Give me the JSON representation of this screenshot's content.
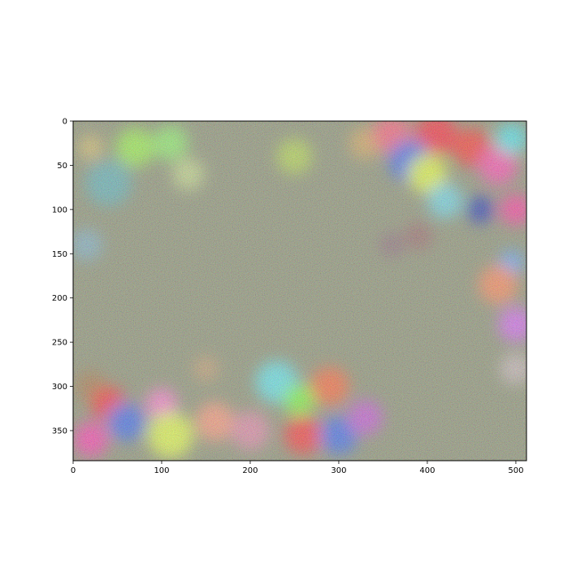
{
  "chart_data": {
    "type": "heatmap",
    "title": "",
    "xlabel": "",
    "ylabel": "",
    "xlim": [
      0,
      512
    ],
    "ylim": [
      384,
      0
    ],
    "grid": false,
    "xticks": [
      0,
      100,
      200,
      300,
      400,
      500
    ],
    "yticks": [
      0,
      50,
      100,
      150,
      200,
      250,
      300,
      350
    ],
    "xtick_labels": [
      "0",
      "100",
      "200",
      "300",
      "400",
      "500"
    ],
    "ytick_labels": [
      "0",
      "50",
      "100",
      "150",
      "200",
      "250",
      "300",
      "350"
    ],
    "base_color": "#8e9476",
    "blobs": [
      {
        "x": 40,
        "y": 70,
        "r": 26,
        "color": "#5fb3b8"
      },
      {
        "x": 70,
        "y": 30,
        "r": 22,
        "color": "#9bf54a"
      },
      {
        "x": 110,
        "y": 25,
        "r": 20,
        "color": "#8ff26a"
      },
      {
        "x": 130,
        "y": 60,
        "r": 18,
        "color": "#c4d98a"
      },
      {
        "x": 20,
        "y": 30,
        "r": 14,
        "color": "#d7c06a"
      },
      {
        "x": 15,
        "y": 140,
        "r": 18,
        "color": "#7fb0c4"
      },
      {
        "x": 250,
        "y": 40,
        "r": 20,
        "color": "#b5d84f"
      },
      {
        "x": 330,
        "y": 25,
        "r": 18,
        "color": "#d6a85d"
      },
      {
        "x": 360,
        "y": 15,
        "r": 22,
        "color": "#ff5f7a"
      },
      {
        "x": 410,
        "y": 15,
        "r": 24,
        "color": "#ff2d3a"
      },
      {
        "x": 380,
        "y": 45,
        "r": 24,
        "color": "#3f6df0"
      },
      {
        "x": 400,
        "y": 60,
        "r": 22,
        "color": "#e9ff3b"
      },
      {
        "x": 420,
        "y": 90,
        "r": 20,
        "color": "#6fd8e8"
      },
      {
        "x": 450,
        "y": 30,
        "r": 22,
        "color": "#ff3a30"
      },
      {
        "x": 480,
        "y": 50,
        "r": 22,
        "color": "#ff4fb0"
      },
      {
        "x": 495,
        "y": 20,
        "r": 18,
        "color": "#4fe8f0"
      },
      {
        "x": 460,
        "y": 100,
        "r": 16,
        "color": "#2a3cb8"
      },
      {
        "x": 500,
        "y": 100,
        "r": 18,
        "color": "#ff3fa0"
      },
      {
        "x": 495,
        "y": 160,
        "r": 14,
        "color": "#5fa8ff"
      },
      {
        "x": 480,
        "y": 185,
        "r": 22,
        "color": "#ff8a5a"
      },
      {
        "x": 500,
        "y": 230,
        "r": 20,
        "color": "#d86af5"
      },
      {
        "x": 500,
        "y": 280,
        "r": 18,
        "color": "#c8b8b8"
      },
      {
        "x": 20,
        "y": 300,
        "r": 18,
        "color": "#a87a4a"
      },
      {
        "x": 40,
        "y": 320,
        "r": 20,
        "color": "#ff3030"
      },
      {
        "x": 60,
        "y": 340,
        "r": 22,
        "color": "#3f6df0"
      },
      {
        "x": 20,
        "y": 360,
        "r": 20,
        "color": "#ff40b0"
      },
      {
        "x": 100,
        "y": 320,
        "r": 18,
        "color": "#ff80d0"
      },
      {
        "x": 110,
        "y": 355,
        "r": 26,
        "color": "#e6ff4a"
      },
      {
        "x": 160,
        "y": 340,
        "r": 22,
        "color": "#ff9a7a"
      },
      {
        "x": 200,
        "y": 350,
        "r": 22,
        "color": "#e38aa8"
      },
      {
        "x": 230,
        "y": 295,
        "r": 24,
        "color": "#5fe8f0"
      },
      {
        "x": 255,
        "y": 315,
        "r": 18,
        "color": "#7dff3a"
      },
      {
        "x": 290,
        "y": 300,
        "r": 22,
        "color": "#ff6a3a"
      },
      {
        "x": 260,
        "y": 355,
        "r": 22,
        "color": "#ff3a3a"
      },
      {
        "x": 300,
        "y": 355,
        "r": 22,
        "color": "#3f6df0"
      },
      {
        "x": 330,
        "y": 335,
        "r": 20,
        "color": "#c85ad8"
      },
      {
        "x": 150,
        "y": 280,
        "r": 14,
        "color": "#c8a070"
      },
      {
        "x": 360,
        "y": 140,
        "r": 14,
        "color": "#8e6d7a"
      },
      {
        "x": 390,
        "y": 130,
        "r": 16,
        "color": "#9a6a6a"
      }
    ]
  }
}
